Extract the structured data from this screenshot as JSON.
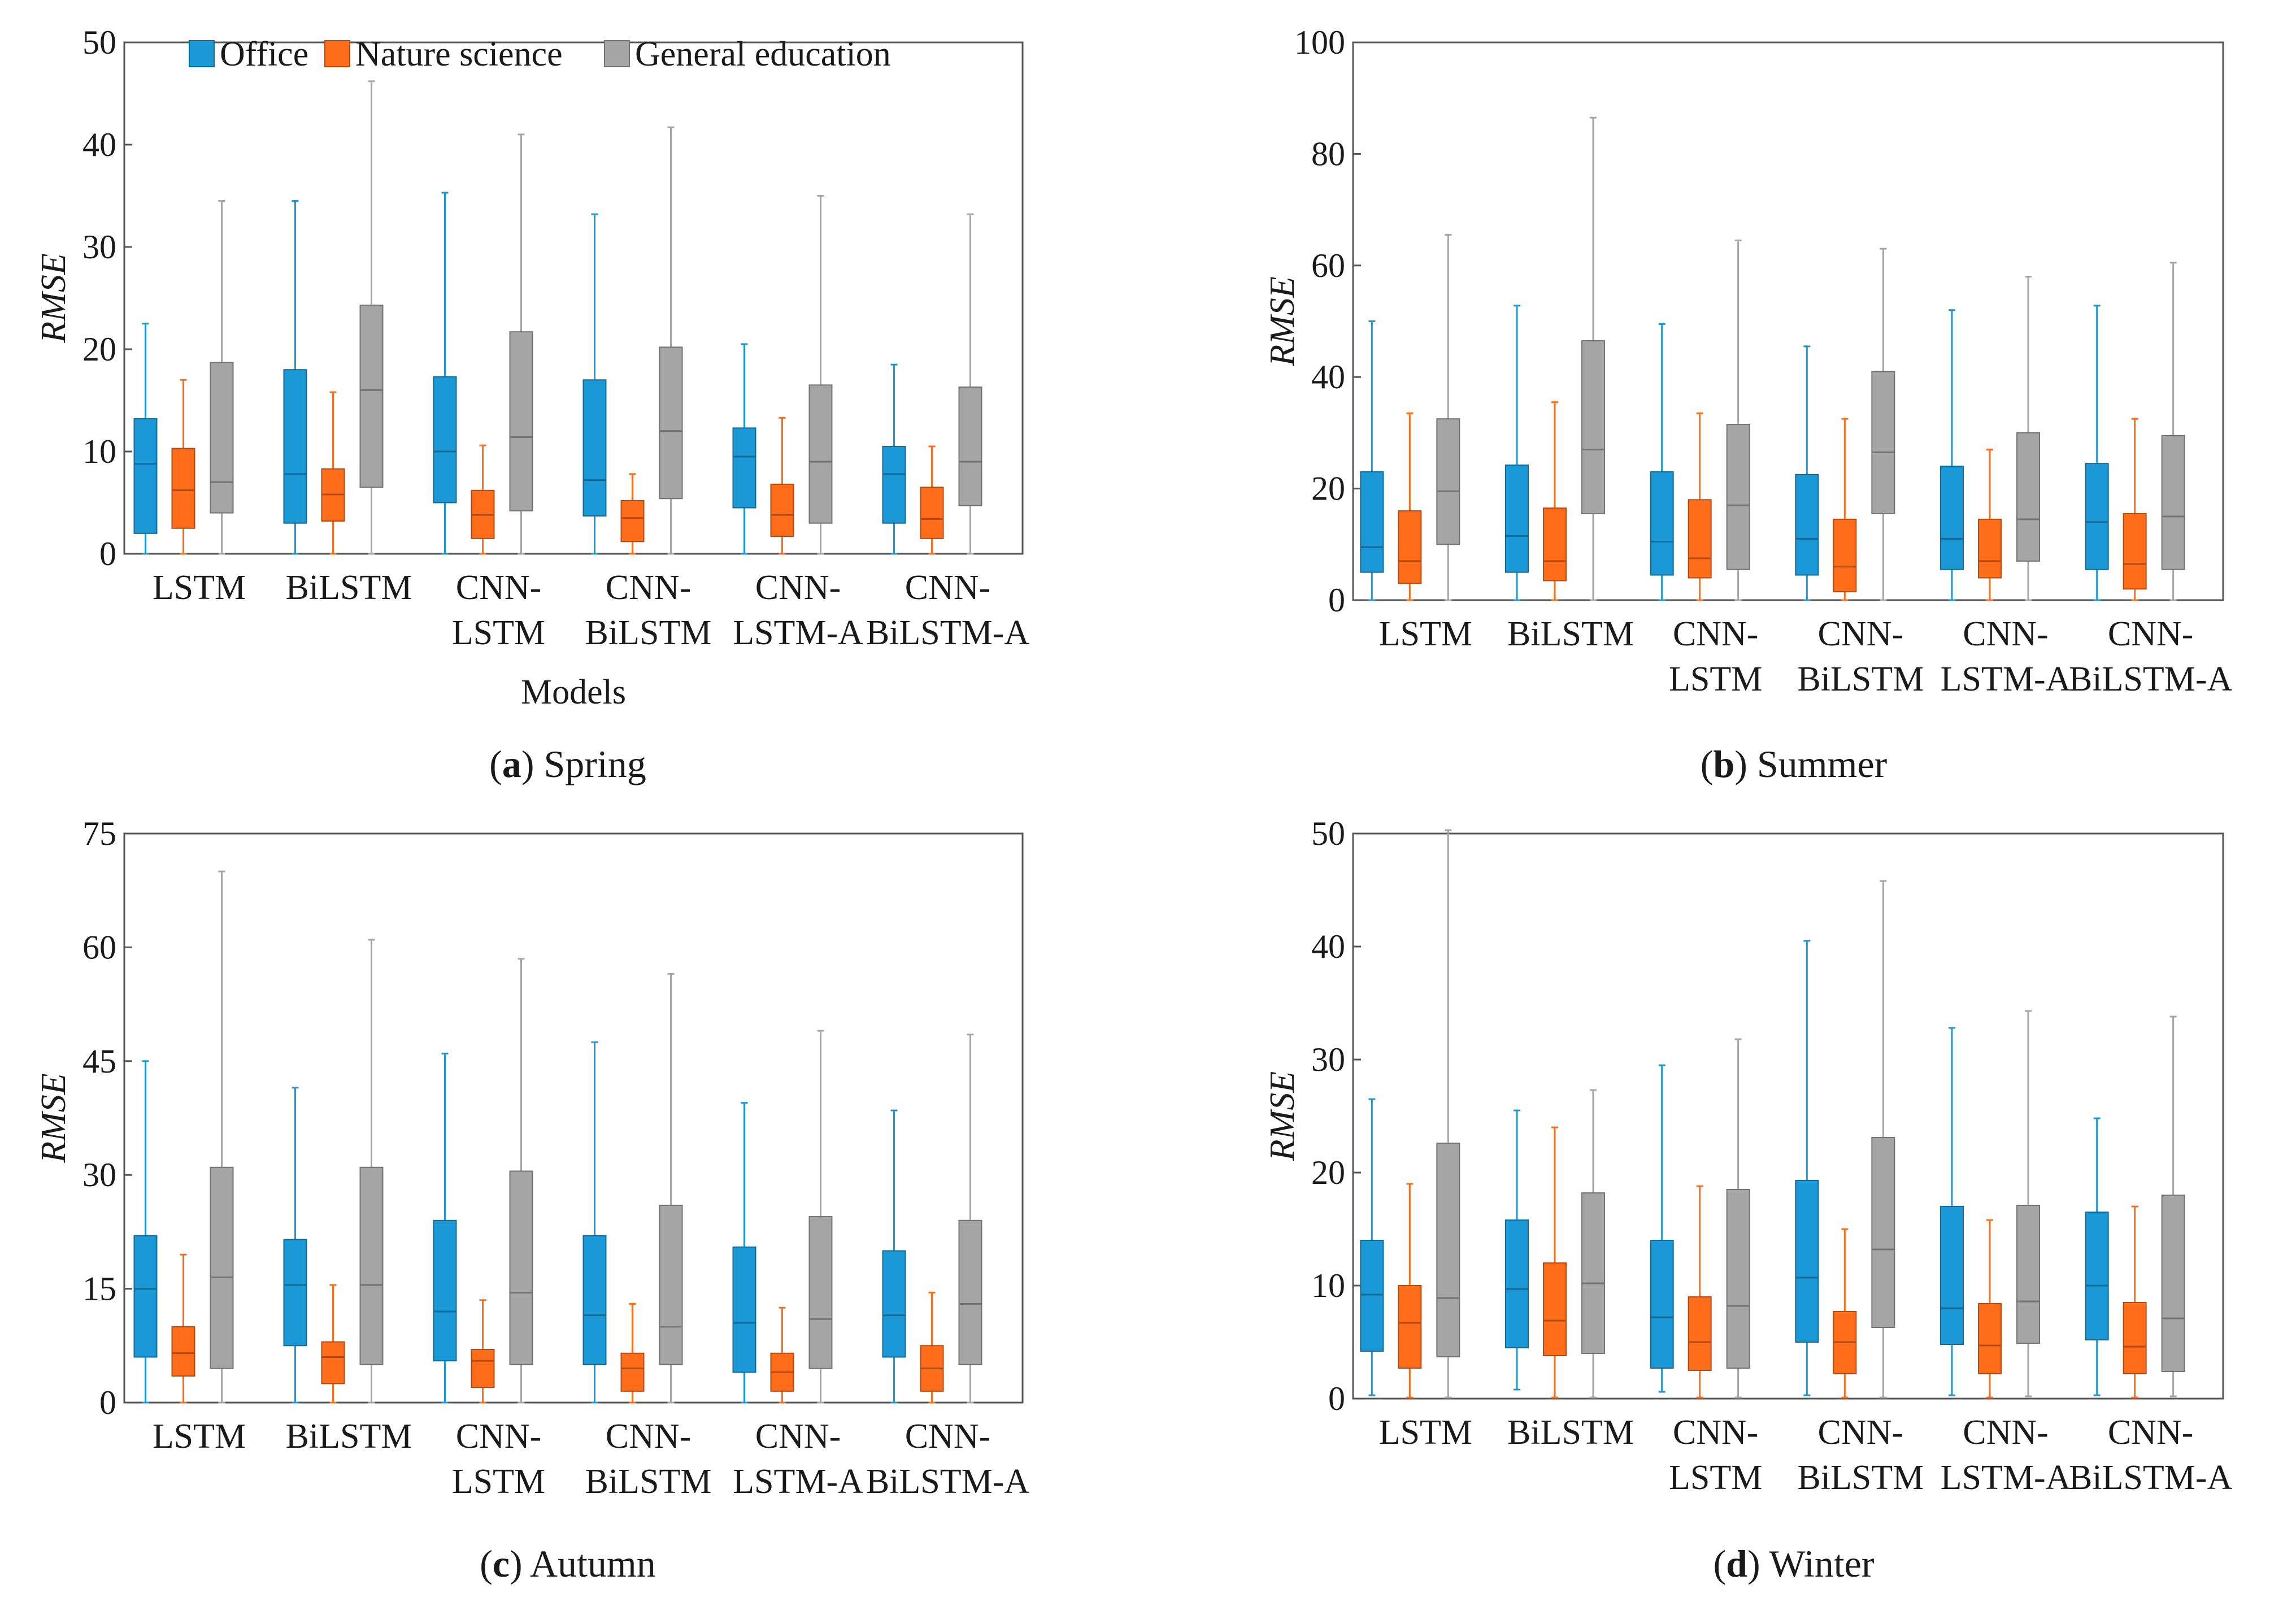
{
  "legend": [
    "Office",
    "Nature science",
    "General education"
  ],
  "colors": {
    "Office": "#1b98d6",
    "Nature science": "#ff6d1a",
    "General education": "#a5a5a5"
  },
  "chart_data": [
    {
      "type": "box",
      "caption_letter": "a",
      "caption_text": "Spring",
      "ylabel": "RMSE",
      "xlabel": "Models",
      "show_legend": true,
      "ylim": [
        0,
        50
      ],
      "yticks": [
        0,
        10,
        20,
        30,
        40,
        50
      ],
      "categories": [
        [
          "LSTM"
        ],
        [
          "BiLSTM"
        ],
        [
          "CNN-",
          "LSTM"
        ],
        [
          "CNN-",
          "BiLSTM"
        ],
        [
          "CNN-",
          "LSTM-A"
        ],
        [
          "CNN-",
          "BiLSTM-A"
        ]
      ],
      "series": [
        {
          "name": "Office",
          "boxes": [
            [
              0,
              2,
              8.8,
              13.2,
              22.5
            ],
            [
              0,
              3,
              7.8,
              18,
              34.5
            ],
            [
              0,
              5,
              10,
              17.3,
              35.3
            ],
            [
              0,
              3.7,
              7.2,
              17,
              33.2
            ],
            [
              0,
              4.5,
              9.5,
              12.3,
              20.5
            ],
            [
              0,
              3,
              7.8,
              10.5,
              18.5
            ]
          ]
        },
        {
          "name": "Nature science",
          "boxes": [
            [
              0,
              2.5,
              6.2,
              10.3,
              17
            ],
            [
              0,
              3.2,
              5.8,
              8.3,
              15.8
            ],
            [
              0,
              1.5,
              3.8,
              6.2,
              10.6
            ],
            [
              0,
              1.2,
              3.5,
              5.2,
              7.8
            ],
            [
              0,
              1.7,
              3.8,
              6.8,
              13.3
            ],
            [
              0,
              1.5,
              3.4,
              6.5,
              10.5
            ]
          ]
        },
        {
          "name": "General education",
          "boxes": [
            [
              0,
              4,
              7,
              18.7,
              34.5
            ],
            [
              0,
              6.5,
              16,
              24.3,
              46.2
            ],
            [
              0,
              4.2,
              11.4,
              21.7,
              41
            ],
            [
              0,
              5.4,
              12,
              20.2,
              41.7
            ],
            [
              0,
              3,
              9,
              16.5,
              35
            ],
            [
              0,
              4.7,
              9,
              16.3,
              33.2
            ]
          ]
        }
      ]
    },
    {
      "type": "box",
      "caption_letter": "b",
      "caption_text": "Summer",
      "ylabel": "RMSE",
      "xlabel": "",
      "show_legend": false,
      "ylim": [
        0,
        100
      ],
      "yticks": [
        0,
        20,
        40,
        60,
        80,
        100
      ],
      "categories": [
        [
          "LSTM"
        ],
        [
          "BiLSTM"
        ],
        [
          "CNN-",
          "LSTM"
        ],
        [
          "CNN-",
          "BiLSTM"
        ],
        [
          "CNN-",
          "LSTM-A"
        ],
        [
          "CNN-",
          "BiLSTM-A"
        ]
      ],
      "series": [
        {
          "name": "Office",
          "boxes": [
            [
              0,
              5,
              9.5,
              23,
              50
            ],
            [
              0,
              5,
              11.5,
              24.2,
              52.8
            ],
            [
              0,
              4.5,
              10.5,
              23,
              49.5
            ],
            [
              0,
              4.5,
              11,
              22.5,
              45.5
            ],
            [
              0,
              5.5,
              11,
              24,
              52
            ],
            [
              0,
              5.5,
              14,
              24.5,
              52.8
            ]
          ]
        },
        {
          "name": "Nature science",
          "boxes": [
            [
              0,
              3,
              7,
              16,
              33.5
            ],
            [
              0,
              3.5,
              7,
              16.5,
              35.5
            ],
            [
              0,
              4,
              7.5,
              18,
              33.5
            ],
            [
              0,
              1.5,
              6,
              14.5,
              32.5
            ],
            [
              0,
              4,
              7,
              14.5,
              27
            ],
            [
              0,
              2,
              6.5,
              15.5,
              32.5
            ]
          ]
        },
        {
          "name": "General education",
          "boxes": [
            [
              0,
              10,
              19.5,
              32.5,
              65.5
            ],
            [
              0,
              15.5,
              27,
              46.5,
              86.5
            ],
            [
              0,
              5.5,
              17,
              31.5,
              64.5
            ],
            [
              0,
              15.5,
              26.5,
              41,
              63
            ],
            [
              0,
              7,
              14.5,
              30,
              58
            ],
            [
              0,
              5.5,
              15,
              29.5,
              60.5
            ]
          ]
        }
      ]
    },
    {
      "type": "box",
      "caption_letter": "c",
      "caption_text": "Autumn",
      "ylabel": "RMSE",
      "xlabel": "",
      "show_legend": false,
      "ylim": [
        0,
        75
      ],
      "yticks": [
        0,
        15,
        30,
        45,
        60,
        75
      ],
      "categories": [
        [
          "LSTM"
        ],
        [
          "BiLSTM"
        ],
        [
          "CNN-",
          "LSTM"
        ],
        [
          "CNN-",
          "BiLSTM"
        ],
        [
          "CNN-",
          "LSTM-A"
        ],
        [
          "CNN-",
          "BiLSTM-A"
        ]
      ],
      "series": [
        {
          "name": "Office",
          "boxes": [
            [
              0,
              6,
              15,
              22,
              45
            ],
            [
              0,
              7.5,
              15.5,
              21.5,
              41.5
            ],
            [
              0,
              5.5,
              12,
              24,
              46
            ],
            [
              0,
              5,
              11.5,
              22,
              47.5
            ],
            [
              0,
              4,
              10.5,
              20.5,
              39.5
            ],
            [
              0,
              6,
              11.5,
              20,
              38.5
            ]
          ]
        },
        {
          "name": "Nature science",
          "boxes": [
            [
              0,
              3.5,
              6.5,
              10,
              19.5
            ],
            [
              0,
              2.5,
              6,
              8,
              15.5
            ],
            [
              0,
              2,
              5.5,
              7,
              13.5
            ],
            [
              0,
              1.5,
              4.5,
              6.5,
              13
            ],
            [
              0,
              1.5,
              4,
              6.5,
              12.5
            ],
            [
              0,
              1.5,
              4.5,
              7.5,
              14.5
            ]
          ]
        },
        {
          "name": "General education",
          "boxes": [
            [
              0,
              4.5,
              16.5,
              31,
              70
            ],
            [
              0,
              5,
              15.5,
              31,
              61
            ],
            [
              0,
              5,
              14.5,
              30.5,
              58.5
            ],
            [
              0,
              5,
              10,
              26,
              56.5
            ],
            [
              0,
              4.5,
              11,
              24.5,
              49
            ],
            [
              0,
              5,
              13,
              24,
              48.5
            ]
          ]
        }
      ]
    },
    {
      "type": "box",
      "caption_letter": "d",
      "caption_text": "Winter",
      "ylabel": "RMSE",
      "xlabel": "",
      "show_legend": false,
      "ylim": [
        0,
        50
      ],
      "yticks": [
        0,
        10,
        20,
        30,
        40,
        50
      ],
      "categories": [
        [
          "LSTM"
        ],
        [
          "BiLSTM"
        ],
        [
          "CNN-",
          "LSTM"
        ],
        [
          "CNN-",
          "BiLSTM"
        ],
        [
          "CNN-",
          "LSTM-A"
        ],
        [
          "CNN-",
          "BiLSTM-A"
        ]
      ],
      "series": [
        {
          "name": "Office",
          "boxes": [
            [
              0.3,
              4.2,
              9.2,
              14,
              26.5
            ],
            [
              0.8,
              4.5,
              9.7,
              15.8,
              25.5
            ],
            [
              0.6,
              2.7,
              7.2,
              14,
              29.5
            ],
            [
              0.3,
              5,
              10.7,
              19.3,
              40.5
            ],
            [
              0.3,
              4.8,
              8,
              17,
              32.8
            ],
            [
              0.3,
              5.2,
              10,
              16.5,
              24.8
            ]
          ]
        },
        {
          "name": "Nature science",
          "boxes": [
            [
              0.1,
              2.7,
              6.7,
              10,
              19
            ],
            [
              0.1,
              3.8,
              6.9,
              12,
              24
            ],
            [
              0.1,
              2.5,
              5,
              9,
              18.8
            ],
            [
              0.1,
              2.2,
              5,
              7.7,
              15
            ],
            [
              0.1,
              2.2,
              4.7,
              8.4,
              15.8
            ],
            [
              0.1,
              2.2,
              4.6,
              8.5,
              17
            ]
          ]
        },
        {
          "name": "General education",
          "boxes": [
            [
              0.1,
              3.7,
              8.9,
              22.6,
              50.3
            ],
            [
              0.1,
              4,
              10.2,
              18.2,
              27.3
            ],
            [
              0.1,
              2.7,
              8.2,
              18.5,
              31.8
            ],
            [
              0.1,
              6.3,
              13.2,
              23.1,
              45.8
            ],
            [
              0.2,
              4.9,
              8.6,
              17.1,
              34.3
            ],
            [
              0.2,
              2.4,
              7.1,
              18,
              33.8
            ]
          ]
        }
      ]
    }
  ]
}
